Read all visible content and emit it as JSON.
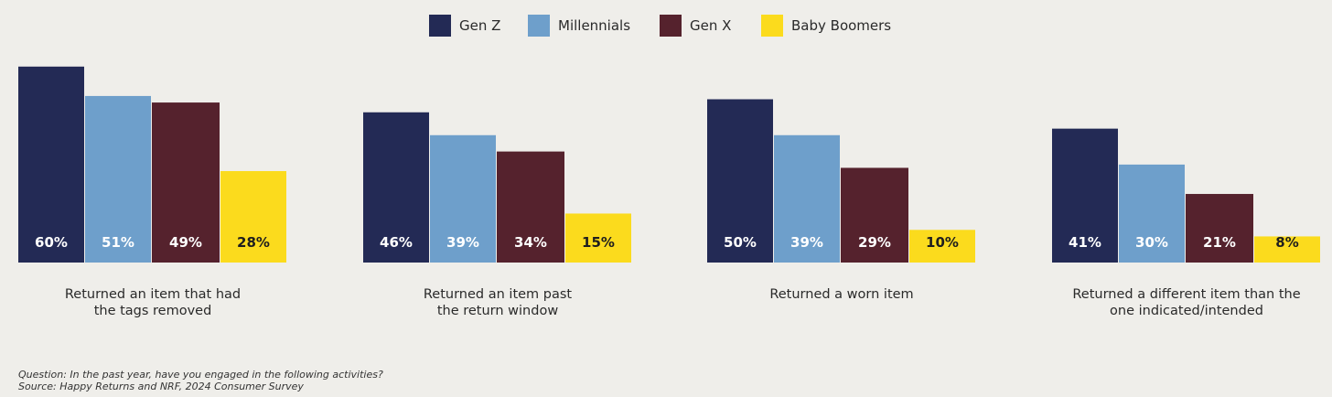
{
  "chart_data": {
    "type": "bar",
    "series": [
      {
        "name": "Gen Z",
        "color": "#232a55",
        "values": [
          60,
          46,
          50,
          41
        ]
      },
      {
        "name": "Millennials",
        "color": "#6e9fcb",
        "values": [
          51,
          39,
          39,
          30
        ]
      },
      {
        "name": "Gen X",
        "color": "#55222d",
        "values": [
          49,
          34,
          29,
          21
        ]
      },
      {
        "name": "Baby Boomers",
        "color": "#fbdb1d",
        "values": [
          28,
          15,
          10,
          8
        ]
      }
    ],
    "categories": [
      [
        "Returned an item that had",
        "the tags removed"
      ],
      [
        "Returned an item past",
        "the return window"
      ],
      [
        "Returned a worn item"
      ],
      [
        "Returned a different item than the",
        "one indicated/intended"
      ]
    ],
    "value_suffix": "%",
    "legend_position": "top-center",
    "grid": false
  },
  "footnote": {
    "question": "Question: In the past year, have you engaged in the following activities?",
    "source": "Source: Happy Returns and NRF, 2024 Consumer Survey"
  }
}
